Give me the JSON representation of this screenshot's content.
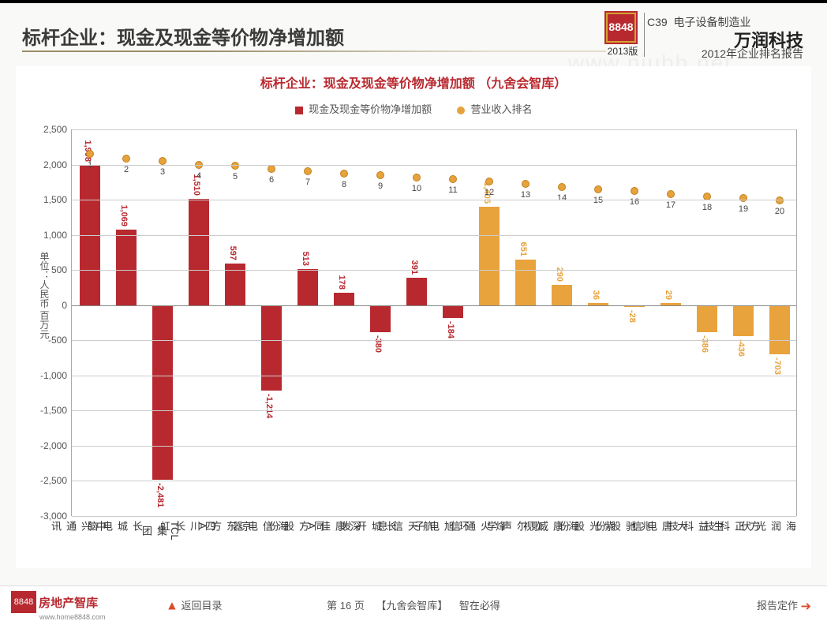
{
  "header": {
    "title": "标杆企业：现金及现金等价物净增加额",
    "right_code": "C39",
    "right_industry": "电子设备制造业",
    "right_company": "万润科技",
    "right_report": "2012年企业排名报告",
    "logo_text": "8848",
    "year_label": "2013版"
  },
  "watermark": "www.niubb.net",
  "chart": {
    "title": "标杆企业：现金及现金等价物净增加额   （九舍会智库）",
    "legend_series1": "现金及现金等价物净增加额",
    "legend_series2": "营业收入排名",
    "y_label": "单位：人民币 百万元",
    "y_min": -3000,
    "y_max": 2500,
    "y_step": 500,
    "bar_color_primary": "#b8292f",
    "bar_color_secondary": "#e8a33d",
    "dot_color": "#e6a23c",
    "grid_color": "#cccccc",
    "axis_color": "#888888",
    "background_color": "#ffffff",
    "title_color": "#b8292f",
    "title_fontsize": 16,
    "label_fontsize": 12,
    "secondary_start_index": 11,
    "categories": [
      "中兴通讯",
      "长城电脑",
      "TCL集团",
      "四川长虹",
      "京东方A",
      "海信电器",
      "同方股份",
      "深康佳A",
      "长城开发",
      "航天信息",
      "环旭电子",
      "烽火通信",
      "歌尔声学",
      "海康威视",
      "紫光股份",
      "兆驰股份",
      "大唐电信",
      "生益科技",
      "方正科技",
      "海润光伏"
    ],
    "values": [
      1998,
      1069,
      -2481,
      1510,
      597,
      -1214,
      513,
      178,
      -380,
      391,
      -184,
      1405,
      651,
      290,
      36,
      -28,
      29,
      -386,
      -436,
      -703
    ],
    "ranks": [
      1,
      2,
      3,
      4,
      5,
      6,
      7,
      8,
      9,
      10,
      11,
      12,
      13,
      14,
      15,
      16,
      17,
      18,
      19,
      20
    ],
    "rank_y": [
      2150,
      2080,
      2050,
      2000,
      1980,
      1940,
      1910,
      1870,
      1850,
      1820,
      1790,
      1760,
      1720,
      1680,
      1650,
      1620,
      1580,
      1550,
      1520,
      1490
    ]
  },
  "footer": {
    "logo_text": "8848",
    "logo_name": "房地产智库",
    "logo_url": "www.home8848.com",
    "back_label": "返回目录",
    "page_prefix": "第",
    "page_num": "16",
    "page_suffix": "页",
    "source": "【九舍会智库】",
    "slogan": "智在必得",
    "order_label": "报告定作"
  }
}
